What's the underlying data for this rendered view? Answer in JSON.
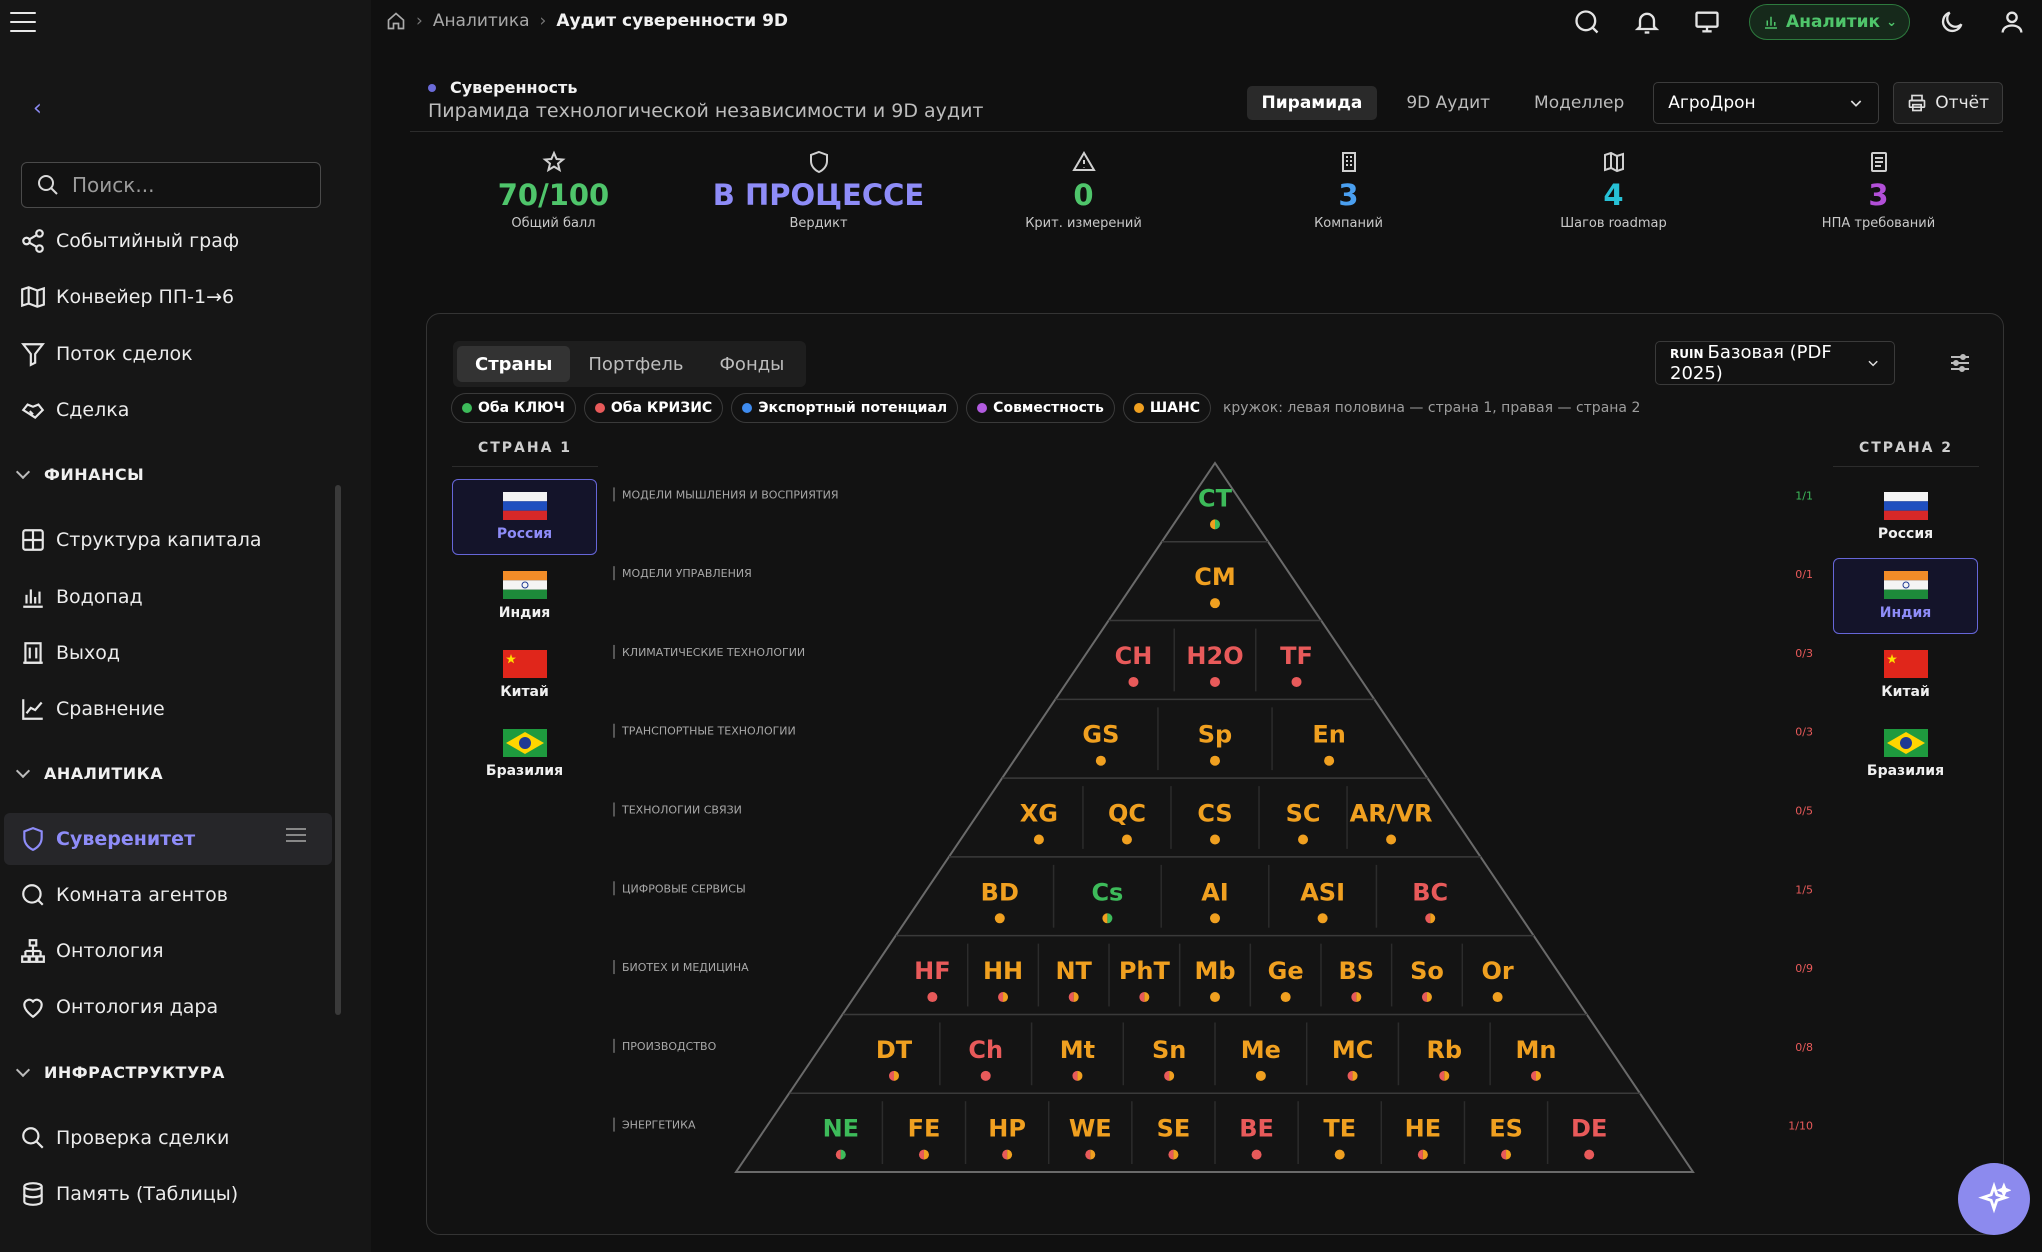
{
  "breadcrumb": {
    "level1": "Аналитика",
    "current": "Аудит суверенности 9D"
  },
  "role_badge": {
    "label": "Аналитик",
    "color": "#4fc56b"
  },
  "search": {
    "placeholder": "Поиск..."
  },
  "sidebar": {
    "items_top": [
      {
        "label": "Событийный граф",
        "icon": "graph-share-icon"
      },
      {
        "label": "Конвейер ПП-1→6",
        "icon": "map-icon"
      },
      {
        "label": "Поток сделок",
        "icon": "funnel-icon"
      },
      {
        "label": "Сделка",
        "icon": "handshake-icon"
      }
    ],
    "section_finance": "ФИНАНСЫ",
    "items_finance": [
      {
        "label": "Структура капитала",
        "icon": "grid-icon"
      },
      {
        "label": "Водопад",
        "icon": "bar-chart-icon"
      },
      {
        "label": "Выход",
        "icon": "building-icon"
      },
      {
        "label": "Сравнение",
        "icon": "line-chart-icon"
      }
    ],
    "section_analytics": "АНАЛИТИКА",
    "items_analytics": [
      {
        "label": "Суверенитет",
        "icon": "shield-icon"
      },
      {
        "label": "Комната агентов",
        "icon": "chat-icon"
      },
      {
        "label": "Онтология",
        "icon": "hierarchy-icon"
      },
      {
        "label": "Онтология дара",
        "icon": "heart-icon"
      }
    ],
    "section_infra": "ИНФРАСТРУКТУРА",
    "items_infra": [
      {
        "label": "Проверка сделки",
        "icon": "search-icon"
      },
      {
        "label": "Память (Таблицы)",
        "icon": "database-icon"
      }
    ]
  },
  "header": {
    "kicker": "Суверенность",
    "subtitle": "Пирамида технологической независимости и 9D аудит",
    "tabs": [
      "Пирамида",
      "9D Аудит",
      "Моделлер"
    ],
    "company": "АгроДрон",
    "report": "Отчёт"
  },
  "stats": [
    {
      "value": "70/100",
      "label": "Общий балл",
      "color": "#4fc56b",
      "icon": "star-icon"
    },
    {
      "value": "В ПРОЦЕССЕ",
      "label": "Вердикт",
      "color": "#8e8cf8",
      "icon": "shield-icon"
    },
    {
      "value": "0",
      "label": "Крит. измерений",
      "color": "#4fc56b",
      "icon": "warning-icon"
    },
    {
      "value": "3",
      "label": "Компаний",
      "color": "#4a9ff0",
      "icon": "building-icon"
    },
    {
      "value": "4",
      "label": "Шагов roadmap",
      "color": "#27c1d6",
      "icon": "map-icon"
    },
    {
      "value": "3",
      "label": "НПА требований",
      "color": "#b24fd8",
      "icon": "document-icon"
    }
  ],
  "panel": {
    "tabs": [
      "Страны",
      "Портфель",
      "Фонды"
    ],
    "baseline_prefix": "RUIN",
    "baseline": "Базовая (PDF 2025)",
    "legend": [
      {
        "label": "Оба КЛЮЧ",
        "color": "#3dbb5a"
      },
      {
        "label": "Оба КРИЗИС",
        "color": "#e85a5a"
      },
      {
        "label": "Экспортный потенциал",
        "color": "#3f8cf0"
      },
      {
        "label": "Совместность",
        "color": "#b25be0"
      },
      {
        "label": "ШАНС",
        "color": "#f0a020"
      }
    ],
    "legend_note": "кружок: левая половина — страна 1, правая — страна 2",
    "country1_header": "СТРАНА 1",
    "country2_header": "СТРАНА 2",
    "countries": [
      "Россия",
      "Индия",
      "Китай",
      "Бразилия"
    ],
    "selected_country1": "Россия",
    "selected_country2": "Индия"
  },
  "pyramid": {
    "colors": {
      "green": "#3dbb5a",
      "orange": "#f0a020",
      "red": "#e85a5a"
    },
    "layers": [
      {
        "name": "МОДЕЛИ МЫШЛЕНИЯ И ВОСПРИЯТИЯ",
        "ratio": "1/1",
        "ratio_color": "green",
        "items": [
          {
            "code": "CT",
            "color": "green",
            "dot": "mix"
          }
        ]
      },
      {
        "name": "МОДЕЛИ УПРАВЛЕНИЯ",
        "ratio": "0/1",
        "ratio_color": "red",
        "items": [
          {
            "code": "CM",
            "color": "orange",
            "dot": "orange"
          }
        ]
      },
      {
        "name": "КЛИМАТИЧЕСКИЕ ТЕХНОЛОГИИ",
        "ratio": "0/3",
        "ratio_color": "red",
        "items": [
          {
            "code": "CH",
            "color": "red",
            "dot": "red"
          },
          {
            "code": "H2O",
            "color": "red",
            "dot": "red"
          },
          {
            "code": "TF",
            "color": "red",
            "dot": "red"
          }
        ]
      },
      {
        "name": "ТРАНСПОРТНЫЕ ТЕХНОЛОГИИ",
        "ratio": "0/3",
        "ratio_color": "red",
        "items": [
          {
            "code": "GS",
            "color": "orange",
            "dot": "orange"
          },
          {
            "code": "Sp",
            "color": "orange",
            "dot": "orange"
          },
          {
            "code": "En",
            "color": "orange",
            "dot": "orange"
          }
        ]
      },
      {
        "name": "ТЕХНОЛОГИИ СВЯЗИ",
        "ratio": "0/5",
        "ratio_color": "red",
        "items": [
          {
            "code": "XG",
            "color": "orange",
            "dot": "orange"
          },
          {
            "code": "QC",
            "color": "orange",
            "dot": "orange"
          },
          {
            "code": "CS",
            "color": "orange",
            "dot": "orange"
          },
          {
            "code": "SC",
            "color": "orange",
            "dot": "orange"
          },
          {
            "code": "AR/VR",
            "color": "orange",
            "dot": "orange"
          }
        ]
      },
      {
        "name": "ЦИФРОВЫЕ СЕРВИСЫ",
        "ratio": "1/5",
        "ratio_color": "red",
        "items": [
          {
            "code": "BD",
            "color": "orange",
            "dot": "orange"
          },
          {
            "code": "Cs",
            "color": "green",
            "dot": "mix"
          },
          {
            "code": "AI",
            "color": "orange",
            "dot": "orange"
          },
          {
            "code": "ASI",
            "color": "orange",
            "dot": "orange"
          },
          {
            "code": "BC",
            "color": "red",
            "dot": "mixr"
          }
        ]
      },
      {
        "name": "БИОТЕХ И МЕДИЦИНА",
        "ratio": "0/9",
        "ratio_color": "red",
        "items": [
          {
            "code": "HF",
            "color": "red",
            "dot": "red"
          },
          {
            "code": "HH",
            "color": "orange",
            "dot": "mixr"
          },
          {
            "code": "NT",
            "color": "orange",
            "dot": "mixr"
          },
          {
            "code": "PhT",
            "color": "orange",
            "dot": "mixr"
          },
          {
            "code": "Mb",
            "color": "orange",
            "dot": "orange"
          },
          {
            "code": "Ge",
            "color": "orange",
            "dot": "orange"
          },
          {
            "code": "BS",
            "color": "orange",
            "dot": "mixr"
          },
          {
            "code": "So",
            "color": "orange",
            "dot": "mixr"
          },
          {
            "code": "Or",
            "color": "orange",
            "dot": "orange"
          }
        ]
      },
      {
        "name": "ПРОИЗВОДСТВО",
        "ratio": "0/8",
        "ratio_color": "red",
        "items": [
          {
            "code": "DT",
            "color": "orange",
            "dot": "mixr"
          },
          {
            "code": "Ch",
            "color": "red",
            "dot": "red"
          },
          {
            "code": "Mt",
            "color": "orange",
            "dot": "mixr"
          },
          {
            "code": "Sn",
            "color": "orange",
            "dot": "mixr"
          },
          {
            "code": "Me",
            "color": "orange",
            "dot": "orange"
          },
          {
            "code": "MC",
            "color": "orange",
            "dot": "mixr"
          },
          {
            "code": "Rb",
            "color": "orange",
            "dot": "mixr"
          },
          {
            "code": "Mn",
            "color": "orange",
            "dot": "mixr"
          }
        ]
      },
      {
        "name": "ЭНЕРГЕТИКА",
        "ratio": "1/10",
        "ratio_color": "red",
        "items": [
          {
            "code": "NE",
            "color": "green",
            "dot": "mixg"
          },
          {
            "code": "FE",
            "color": "orange",
            "dot": "mixr"
          },
          {
            "code": "HP",
            "color": "orange",
            "dot": "mixr"
          },
          {
            "code": "WE",
            "color": "orange",
            "dot": "mixr"
          },
          {
            "code": "SE",
            "color": "orange",
            "dot": "mixr"
          },
          {
            "code": "BE",
            "color": "red",
            "dot": "red"
          },
          {
            "code": "TE",
            "color": "orange",
            "dot": "orange"
          },
          {
            "code": "HE",
            "color": "orange",
            "dot": "mixr"
          },
          {
            "code": "ES",
            "color": "orange",
            "dot": "mixr"
          },
          {
            "code": "DE",
            "color": "red",
            "dot": "red"
          }
        ]
      }
    ]
  }
}
